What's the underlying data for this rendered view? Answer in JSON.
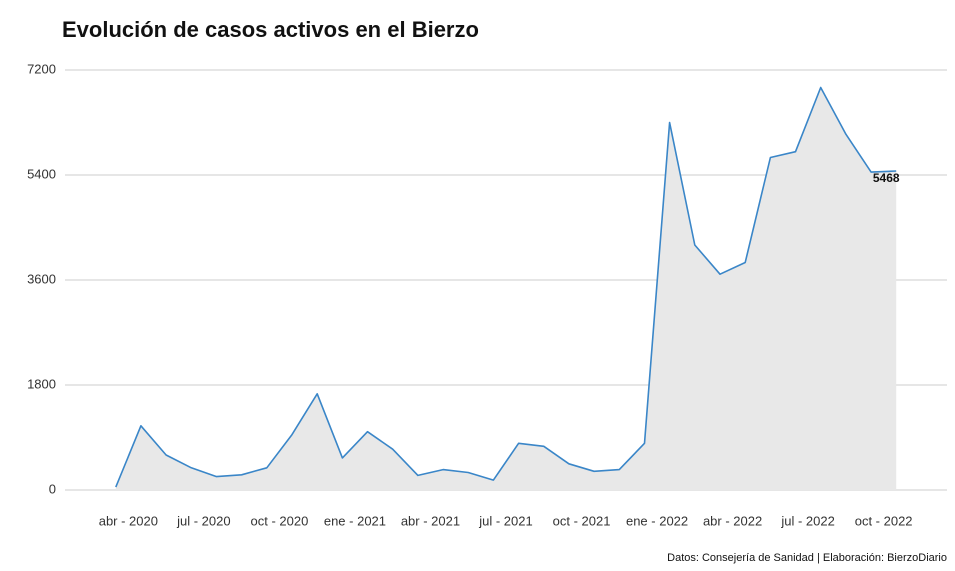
{
  "chart_data": {
    "type": "area",
    "title": "Evolución de casos activos en el Bierzo",
    "source": "Datos: Consejería de Sanidad | Elaboración: BierzoDiario",
    "x": [
      "2020-03",
      "2020-04",
      "2020-05",
      "2020-06",
      "2020-07",
      "2020-08",
      "2020-09",
      "2020-10",
      "2020-11",
      "2020-12",
      "2021-01",
      "2021-02",
      "2021-03",
      "2021-04",
      "2021-05",
      "2021-06",
      "2021-07",
      "2021-08",
      "2021-09",
      "2021-10",
      "2021-11",
      "2021-12",
      "2022-01",
      "2022-02",
      "2022-03",
      "2022-04",
      "2022-05",
      "2022-06",
      "2022-07",
      "2022-08",
      "2022-09",
      "2022-10"
    ],
    "series": [
      {
        "name": "Casos activos",
        "color": "#3a86c8",
        "fill": "#e8e8e8",
        "values": [
          50,
          1100,
          600,
          380,
          230,
          260,
          380,
          950,
          1650,
          550,
          1000,
          700,
          250,
          350,
          300,
          170,
          800,
          750,
          450,
          320,
          350,
          800,
          6300,
          4200,
          3700,
          3900,
          5700,
          5800,
          6900,
          6100,
          5450,
          5468
        ]
      }
    ],
    "xlim": [
      "2020-02",
      "2022-12"
    ],
    "xticks": [
      {
        "value": "2020-04",
        "label": "abr - 2020"
      },
      {
        "value": "2020-07",
        "label": "jul - 2020"
      },
      {
        "value": "2020-10",
        "label": "oct - 2020"
      },
      {
        "value": "2021-01",
        "label": "ene - 2021"
      },
      {
        "value": "2021-04",
        "label": "abr - 2021"
      },
      {
        "value": "2021-07",
        "label": "jul - 2021"
      },
      {
        "value": "2021-10",
        "label": "oct - 2021"
      },
      {
        "value": "2022-01",
        "label": "ene - 2022"
      },
      {
        "value": "2022-04",
        "label": "abr - 2022"
      },
      {
        "value": "2022-07",
        "label": "jul - 2022"
      },
      {
        "value": "2022-10",
        "label": "oct - 2022"
      }
    ],
    "ylim": [
      0,
      7200
    ],
    "yticks": [
      0,
      1800,
      3600,
      5400,
      7200
    ],
    "grid": true,
    "label_last": true
  }
}
